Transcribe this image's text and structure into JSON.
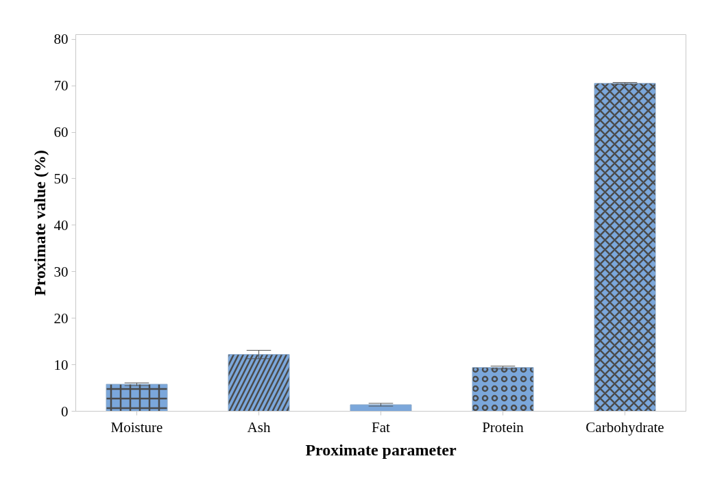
{
  "chart_data": {
    "type": "bar",
    "xlabel": "Proximate parameter",
    "ylabel": "Proximate value (%)",
    "categories": [
      "Moisture",
      "Ash",
      "Fat",
      "Protein",
      "Carbohydrate"
    ],
    "values": [
      5.8,
      12.2,
      1.4,
      9.4,
      70.5
    ],
    "errors": [
      0.3,
      0.9,
      0.3,
      0.3,
      0.2
    ],
    "color": "#7ba7db",
    "ylim": [
      0,
      81
    ],
    "yticks": [
      0,
      10,
      20,
      30,
      40,
      50,
      60,
      70,
      80
    ],
    "grid": false
  }
}
